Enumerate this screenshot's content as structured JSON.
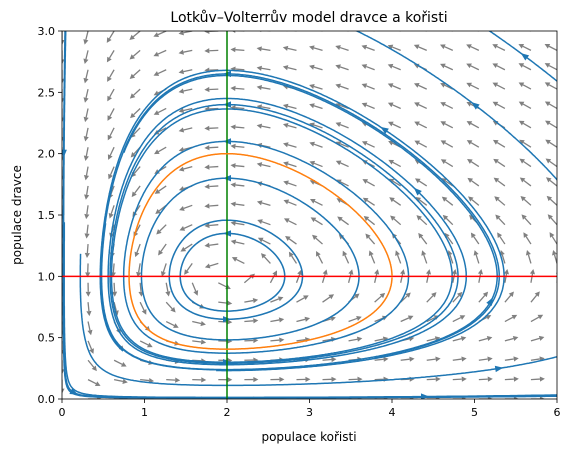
{
  "chart_data": {
    "type": "streamplot",
    "title": "Lotkův–Volterrův model dravce a kořisti",
    "xlabel": "populace kořisti",
    "ylabel": "populace dravce",
    "xlim": [
      0,
      6
    ],
    "ylim": [
      0,
      3
    ],
    "xticks": [
      "0",
      "1",
      "2",
      "3",
      "4",
      "5",
      "6"
    ],
    "yticks": [
      "0.0",
      "0.5",
      "1.0",
      "1.5",
      "2.0",
      "2.5",
      "3.0"
    ],
    "grid": false,
    "legend": "none",
    "model": {
      "alpha": 1,
      "beta": 1,
      "gamma": 1,
      "delta": 0.5
    },
    "equilibrium": {
      "x": 2,
      "y": 1
    },
    "nullclines": [
      {
        "orientation": "vertical",
        "x": 2,
        "color": "#008000"
      },
      {
        "orientation": "horizontal",
        "y": 1,
        "color": "#ff0000"
      }
    ],
    "trajectory": {
      "x0": 4,
      "y0": 1,
      "color": "#ff7f0e"
    },
    "colors": {
      "streamlines": "#1f77b4",
      "quiver": "#808080",
      "trajectory": "#ff7f0e",
      "vertical_line": "#008000",
      "horizontal_line": "#ff0000"
    },
    "quiver": {
      "nx": 20,
      "ny": 20
    },
    "streamline_seeds": [
      [
        2.0,
        1.35
      ],
      [
        2.0,
        1.8
      ],
      [
        2.0,
        2.1
      ],
      [
        2.0,
        2.4
      ],
      [
        2.0,
        2.65
      ],
      [
        2.0,
        0.65
      ],
      [
        2.0,
        0.3
      ],
      [
        4.3,
        1.7
      ],
      [
        5.0,
        2.4
      ],
      [
        5.6,
        2.8
      ],
      [
        5.2,
        0.8
      ],
      [
        5.3,
        0.25
      ],
      [
        0.15,
        0.05
      ],
      [
        4.4,
        0.02
      ],
      [
        3.9,
        2.2
      ],
      [
        0.02,
        2.0
      ]
    ]
  }
}
